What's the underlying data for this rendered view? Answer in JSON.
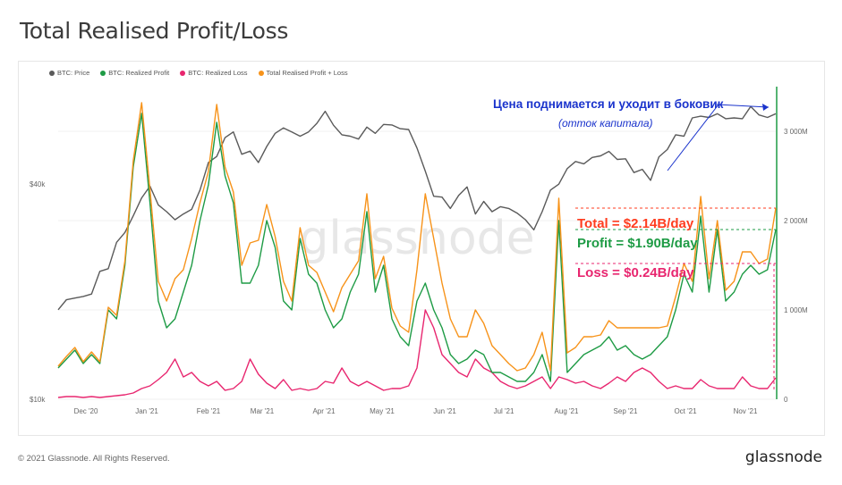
{
  "title": "Total Realised Profit/Loss",
  "footer": {
    "copyright": "© 2021 Glassnode. All Rights Reserved.",
    "logo": "glassnode"
  },
  "watermark": "glassnode",
  "chart_data": {
    "type": "line",
    "title": "Total Realised Profit/Loss",
    "legend_position": "top-left",
    "legend": [
      {
        "name": "BTC: Price",
        "color": "#5a5a5a"
      },
      {
        "name": "BTC: Realized Profit",
        "color": "#1e9b45"
      },
      {
        "name": "BTC: Realized Loss",
        "color": "#e8266f"
      },
      {
        "name": "Total Realised Profit + Loss",
        "color": "#f7931a"
      }
    ],
    "x_ticks": [
      "Dec '20",
      "Jan '21",
      "Feb '21",
      "Mar '21",
      "Apr '21",
      "May '21",
      "Jun '21",
      "Jul '21",
      "Aug '21",
      "Sep '21",
      "Oct '21",
      "Nov '21"
    ],
    "y_left": {
      "scale": "log",
      "ticks": [
        "$10k",
        "$40k"
      ]
    },
    "y_right": {
      "range": [
        0,
        3500000000
      ],
      "ticks": [
        "0",
        "1 000M",
        "2 000M",
        "3 000M"
      ]
    },
    "series": [
      {
        "name": "BTC: Price",
        "axis": "left",
        "color": "#5a5a5a",
        "values": [
          17800,
          19000,
          19200,
          19400,
          19700,
          22800,
          23200,
          27500,
          29300,
          32600,
          36600,
          39500,
          35000,
          33500,
          31800,
          33000,
          34000,
          38500,
          46000,
          47800,
          54000,
          56000,
          48500,
          49500,
          46000,
          51000,
          55500,
          57500,
          56000,
          54500,
          56000,
          59200,
          64000,
          58500,
          55000,
          54500,
          53500,
          57800,
          55500,
          58800,
          58600,
          57200,
          56900,
          50500,
          43500,
          37000,
          36800,
          34200,
          37200,
          39300,
          33000,
          35800,
          33500,
          34600,
          34200,
          33200,
          31800,
          29800,
          33500,
          38500,
          40000,
          44200,
          46300,
          45600,
          47500,
          48000,
          49400,
          46900,
          47100,
          43100,
          44000,
          41000,
          47700,
          50000,
          55000,
          54500,
          61300,
          62000,
          61500,
          63000,
          61000,
          61300,
          61000,
          66000,
          62500,
          61500,
          63000
        ]
      },
      {
        "name": "BTC: Realized Profit",
        "axis": "right",
        "color": "#1e9b45",
        "values": [
          0.35,
          0.45,
          0.55,
          0.4,
          0.5,
          0.4,
          1.0,
          0.9,
          1.5,
          2.6,
          3.2,
          2.2,
          1.1,
          0.8,
          0.9,
          1.2,
          1.5,
          2.0,
          2.4,
          3.1,
          2.5,
          2.2,
          1.3,
          1.3,
          1.5,
          2.0,
          1.7,
          1.1,
          1.0,
          1.8,
          1.4,
          1.3,
          1.0,
          0.8,
          0.9,
          1.2,
          1.4,
          2.1,
          1.2,
          1.5,
          0.9,
          0.7,
          0.6,
          1.1,
          1.3,
          1.0,
          0.8,
          0.5,
          0.4,
          0.45,
          0.55,
          0.5,
          0.3,
          0.3,
          0.25,
          0.2,
          0.2,
          0.3,
          0.5,
          0.2,
          2.0,
          0.3,
          0.4,
          0.5,
          0.55,
          0.6,
          0.7,
          0.55,
          0.6,
          0.5,
          0.45,
          0.5,
          0.6,
          0.7,
          1.0,
          1.4,
          1.2,
          2.05,
          1.2,
          1.9,
          1.1,
          1.2,
          1.4,
          1.5,
          1.4,
          1.45,
          1.9
        ]
      },
      {
        "name": "BTC: Realized Loss",
        "axis": "right",
        "color": "#e8266f",
        "values": [
          0.02,
          0.03,
          0.03,
          0.02,
          0.03,
          0.02,
          0.03,
          0.04,
          0.05,
          0.07,
          0.12,
          0.15,
          0.22,
          0.3,
          0.45,
          0.25,
          0.3,
          0.2,
          0.15,
          0.2,
          0.1,
          0.12,
          0.2,
          0.45,
          0.28,
          0.18,
          0.12,
          0.22,
          0.1,
          0.12,
          0.1,
          0.12,
          0.2,
          0.18,
          0.35,
          0.2,
          0.15,
          0.2,
          0.15,
          0.1,
          0.12,
          0.12,
          0.15,
          0.35,
          1.0,
          0.8,
          0.5,
          0.4,
          0.3,
          0.25,
          0.45,
          0.35,
          0.3,
          0.2,
          0.15,
          0.12,
          0.15,
          0.2,
          0.25,
          0.12,
          0.25,
          0.22,
          0.18,
          0.2,
          0.15,
          0.12,
          0.18,
          0.25,
          0.2,
          0.3,
          0.35,
          0.3,
          0.2,
          0.12,
          0.15,
          0.12,
          0.12,
          0.22,
          0.15,
          0.12,
          0.12,
          0.12,
          0.25,
          0.15,
          0.12,
          0.12,
          0.24
        ]
      },
      {
        "name": "Total Realised Profit + Loss",
        "axis": "right",
        "color": "#f7931a",
        "values": [
          0.37,
          0.48,
          0.58,
          0.42,
          0.53,
          0.42,
          1.03,
          0.94,
          1.55,
          2.67,
          3.32,
          2.35,
          1.32,
          1.1,
          1.35,
          1.45,
          1.8,
          2.2,
          2.55,
          3.3,
          2.6,
          2.32,
          1.5,
          1.75,
          1.78,
          2.18,
          1.82,
          1.32,
          1.1,
          1.92,
          1.5,
          1.42,
          1.2,
          0.98,
          1.25,
          1.4,
          1.55,
          2.3,
          1.35,
          1.6,
          1.02,
          0.82,
          0.75,
          1.45,
          2.3,
          1.8,
          1.3,
          0.9,
          0.7,
          0.7,
          1.0,
          0.85,
          0.6,
          0.5,
          0.4,
          0.32,
          0.35,
          0.5,
          0.75,
          0.32,
          2.25,
          0.52,
          0.58,
          0.7,
          0.7,
          0.72,
          0.88,
          0.8,
          0.8,
          0.8,
          0.8,
          0.8,
          0.8,
          0.82,
          1.15,
          1.52,
          1.32,
          2.27,
          1.35,
          2.0,
          1.22,
          1.32,
          1.65,
          1.65,
          1.52,
          1.57,
          2.14
        ]
      }
    ],
    "annotations": [
      {
        "text": "Цена поднимается и уходит в боковик",
        "color": "#1a33cc",
        "bold": true
      },
      {
        "text": "(отток капитала)",
        "color": "#1a33cc",
        "italic": true
      },
      {
        "text": "Total = $2.14B/day",
        "color": "#ff3d1f",
        "bold": true
      },
      {
        "text": "Profit = $1.90B/day",
        "color": "#1e9b45",
        "bold": true
      },
      {
        "text": "Loss = $0.24B/day",
        "color": "#e8266f",
        "bold": true
      }
    ]
  }
}
